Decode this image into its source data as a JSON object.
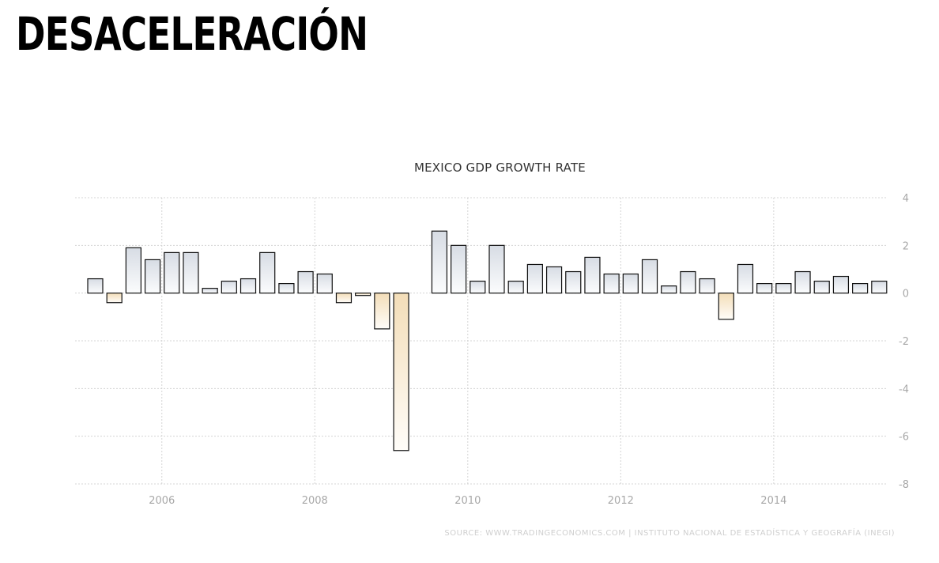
{
  "headline": "DESACELERACIÓN",
  "chart_data": {
    "type": "bar",
    "title": "MEXICO GDP GROWTH RATE",
    "xlabel": "",
    "ylabel": "",
    "ylim": [
      -8,
      4
    ],
    "yticks": [
      "4",
      "2",
      "0",
      "-2",
      "-4",
      "-6",
      "-8"
    ],
    "xticks": [
      "2006",
      "2008",
      "2010",
      "2012",
      "2014"
    ],
    "grid": true,
    "colors": {
      "positive": "#e8ebf0",
      "negative": "#f6e6cc",
      "stroke": "#111111",
      "grid": "#d4d4d4",
      "axis_text": "#a8a8a8"
    },
    "x_start": 2005.0,
    "x_step": 0.25,
    "values": [
      0.6,
      -0.4,
      1.9,
      1.4,
      1.7,
      1.7,
      0.2,
      0.5,
      0.6,
      1.7,
      0.4,
      0.9,
      0.8,
      -0.4,
      -0.1,
      -1.5,
      -6.6,
      0.0,
      2.6,
      2.0,
      0.5,
      2.0,
      0.5,
      1.2,
      1.1,
      0.9,
      1.5,
      0.8,
      0.8,
      1.4,
      0.3,
      0.9,
      0.6,
      -1.1,
      1.2,
      0.4,
      0.4,
      0.9,
      0.5,
      0.7,
      0.4,
      0.5
    ]
  },
  "source": "SOURCE: WWW.TRADINGECONOMICS.COM  |  INSTITUTO NACIONAL DE ESTADÍSTICA Y GEOGRAFÍA (INEGI)"
}
